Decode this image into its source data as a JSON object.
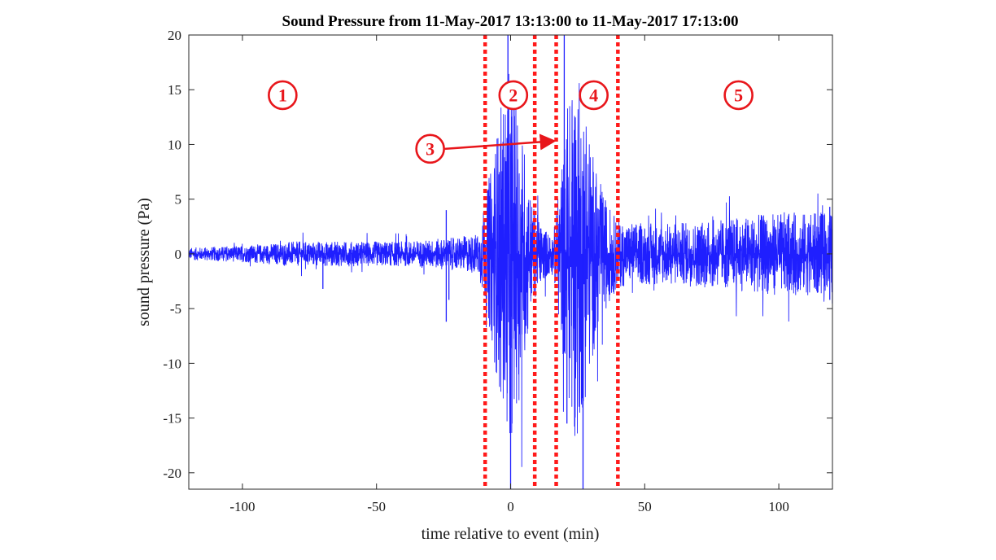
{
  "chart_data": {
    "type": "line",
    "title": "Sound Pressure from 11-May-2017 13:13:00 to 11-May-2017 17:13:00",
    "xlabel": "time relative to event (min)",
    "ylabel": "sound pressure (Pa)",
    "xlim": [
      -120,
      120
    ],
    "ylim": [
      -21.5,
      20
    ],
    "xticks": [
      -100,
      -50,
      0,
      50,
      100
    ],
    "xtick_labels": [
      "-100",
      "-50",
      "0",
      "50",
      "100"
    ],
    "yticks": [
      20,
      15,
      10,
      5,
      0,
      -5,
      -10,
      -15,
      -20
    ],
    "ytick_labels": [
      "20",
      "15",
      "10",
      "5",
      "0",
      "-5",
      "-10",
      "-15",
      "-20"
    ],
    "series": [
      {
        "name": "sound pressure",
        "color": "#1f1fff",
        "envelope_x": [
          -120,
          -100,
          -80,
          -60,
          -40,
          -20,
          -12,
          -8,
          -4,
          0,
          4,
          8,
          12,
          16,
          20,
          24,
          28,
          32,
          36,
          40,
          50,
          60,
          80,
          100,
          120
        ],
        "envelope_amplitude": [
          0.3,
          0.4,
          0.6,
          0.6,
          0.6,
          0.8,
          1.0,
          3.5,
          7.0,
          9.0,
          6.5,
          2.5,
          1.3,
          1.0,
          5.5,
          9.5,
          7.0,
          4.0,
          2.5,
          1.6,
          1.5,
          1.5,
          1.7,
          2.0,
          2.0
        ],
        "spikes": [
          {
            "x": -70,
            "y": -3.2
          },
          {
            "x": -24,
            "y": -6.2
          },
          {
            "x": -24,
            "y": 4.0
          },
          {
            "x": -23,
            "y": -4.2
          },
          {
            "x": -1,
            "y": 20
          },
          {
            "x": 0,
            "y": -21.5
          },
          {
            "x": 20,
            "y": 20
          },
          {
            "x": 21,
            "y": -15.5
          },
          {
            "x": 27,
            "y": -21.5
          },
          {
            "x": 119,
            "y": 4.3
          },
          {
            "x": 119,
            "y": -4.2
          }
        ]
      }
    ],
    "vlines": [
      {
        "x": -9.5,
        "color": "#ff1a1a",
        "style": "dotted"
      },
      {
        "x": 9,
        "color": "#ff1a1a",
        "style": "dotted"
      },
      {
        "x": 17,
        "color": "#ff1a1a",
        "style": "dotted"
      },
      {
        "x": 40,
        "color": "#ff1a1a",
        "style": "dotted"
      }
    ],
    "annotations": [
      {
        "label": "1",
        "x": -85,
        "y": 14.5
      },
      {
        "label": "2",
        "x": 1,
        "y": 14.5
      },
      {
        "label": "3",
        "x": -30,
        "y": 9.6,
        "arrow_to": [
          15.5,
          10.3
        ]
      },
      {
        "label": "4",
        "x": 31,
        "y": 14.5
      },
      {
        "label": "5",
        "x": 85,
        "y": 14.5
      }
    ],
    "annotation_color": "#e8161b",
    "grid": false
  }
}
